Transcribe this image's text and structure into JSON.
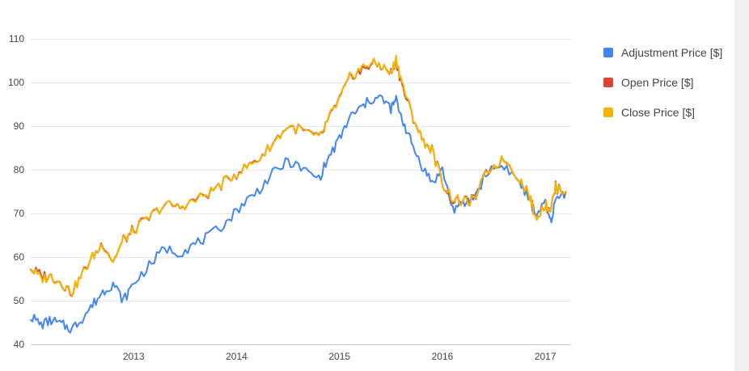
{
  "colors": {
    "adjustment": "#4285f4",
    "open": "#db4437",
    "close": "#f4b400",
    "grid": "#e6e6e6",
    "text": "#444444"
  },
  "legend": {
    "position": "right",
    "items": [
      {
        "label": "Adjustment Price [$]",
        "color": "#4285f4"
      },
      {
        "label": "Open Price [$]",
        "color": "#db4437"
      },
      {
        "label": "Close Price [$]",
        "color": "#f4b400"
      }
    ]
  },
  "chart_data": {
    "type": "line",
    "title": "",
    "xlabel": "",
    "ylabel": "",
    "ylim": [
      40,
      110
    ],
    "xlim": [
      2012.0,
      2017.25
    ],
    "grid": true,
    "legend_position": "right",
    "x_tick_values": [
      2013,
      2014,
      2015,
      2016,
      2017
    ],
    "x_ticks": [
      "2013",
      "2014",
      "2015",
      "2016",
      "2017"
    ],
    "y_ticks": [
      40,
      50,
      60,
      70,
      80,
      90,
      100,
      110
    ],
    "x": [
      2012.0,
      2012.1,
      2012.2,
      2012.3,
      2012.4,
      2012.5,
      2012.6,
      2012.7,
      2012.8,
      2012.9,
      2013.0,
      2013.15,
      2013.3,
      2013.45,
      2013.6,
      2013.75,
      2013.9,
      2014.05,
      2014.2,
      2014.35,
      2014.5,
      2014.65,
      2014.8,
      2014.9,
      2015.0,
      2015.1,
      2015.2,
      2015.3,
      2015.4,
      2015.5,
      2015.55,
      2015.62,
      2015.7,
      2015.8,
      2015.9,
      2016.0,
      2016.1,
      2016.2,
      2016.3,
      2016.45,
      2016.6,
      2016.75,
      2016.85,
      2016.9,
      2017.0,
      2017.05,
      2017.1,
      2017.2
    ],
    "series": [
      {
        "name": "Adjustment Price [$]",
        "color": "#4285f4",
        "values": [
          46.5,
          44.5,
          45.5,
          44.5,
          43.5,
          46.0,
          49.0,
          52.0,
          54.0,
          50.0,
          54.0,
          58.0,
          62.0,
          61.0,
          63.0,
          65.0,
          68.0,
          72.0,
          75.0,
          79.0,
          82.0,
          80.0,
          78.0,
          83.0,
          87.0,
          92.0,
          94.0,
          96.0,
          96.5,
          94.0,
          96.0,
          91.0,
          86.0,
          81.0,
          77.0,
          80.0,
          71.0,
          72.0,
          73.5,
          80.0,
          81.0,
          77.0,
          73.0,
          70.0,
          72.0,
          68.0,
          73.0,
          75.0
        ]
      },
      {
        "name": "Open Price [$]",
        "color": "#db4437",
        "values": [
          57.5,
          55.5,
          55.5,
          54.0,
          52.0,
          56.0,
          60.0,
          63.0,
          59.0,
          64.0,
          66.0,
          69.0,
          72.0,
          71.5,
          73.0,
          75.0,
          77.5,
          80.0,
          82.0,
          86.0,
          90.0,
          89.0,
          87.0,
          92.0,
          96.0,
          101.0,
          102.5,
          104.0,
          104.0,
          102.0,
          105.0,
          98.5,
          93.0,
          87.0,
          84.5,
          77.0,
          73.0,
          72.5,
          73.0,
          80.0,
          82.5,
          78.0,
          74.0,
          69.0,
          72.0,
          71.0,
          76.0,
          75.0
        ]
      },
      {
        "name": "Close Price [$]",
        "color": "#f4b400",
        "values": [
          57.5,
          55.0,
          55.5,
          54.0,
          52.0,
          56.0,
          60.0,
          63.0,
          59.0,
          64.0,
          66.0,
          69.0,
          72.0,
          71.5,
          73.0,
          75.0,
          77.5,
          80.0,
          82.0,
          86.0,
          90.0,
          89.0,
          87.0,
          92.0,
          96.0,
          101.0,
          103.0,
          104.5,
          104.0,
          102.0,
          105.5,
          99.0,
          93.0,
          87.0,
          84.5,
          77.0,
          73.5,
          72.5,
          73.0,
          80.0,
          82.5,
          78.0,
          74.0,
          69.0,
          72.0,
          71.0,
          76.0,
          75.0
        ]
      }
    ]
  }
}
